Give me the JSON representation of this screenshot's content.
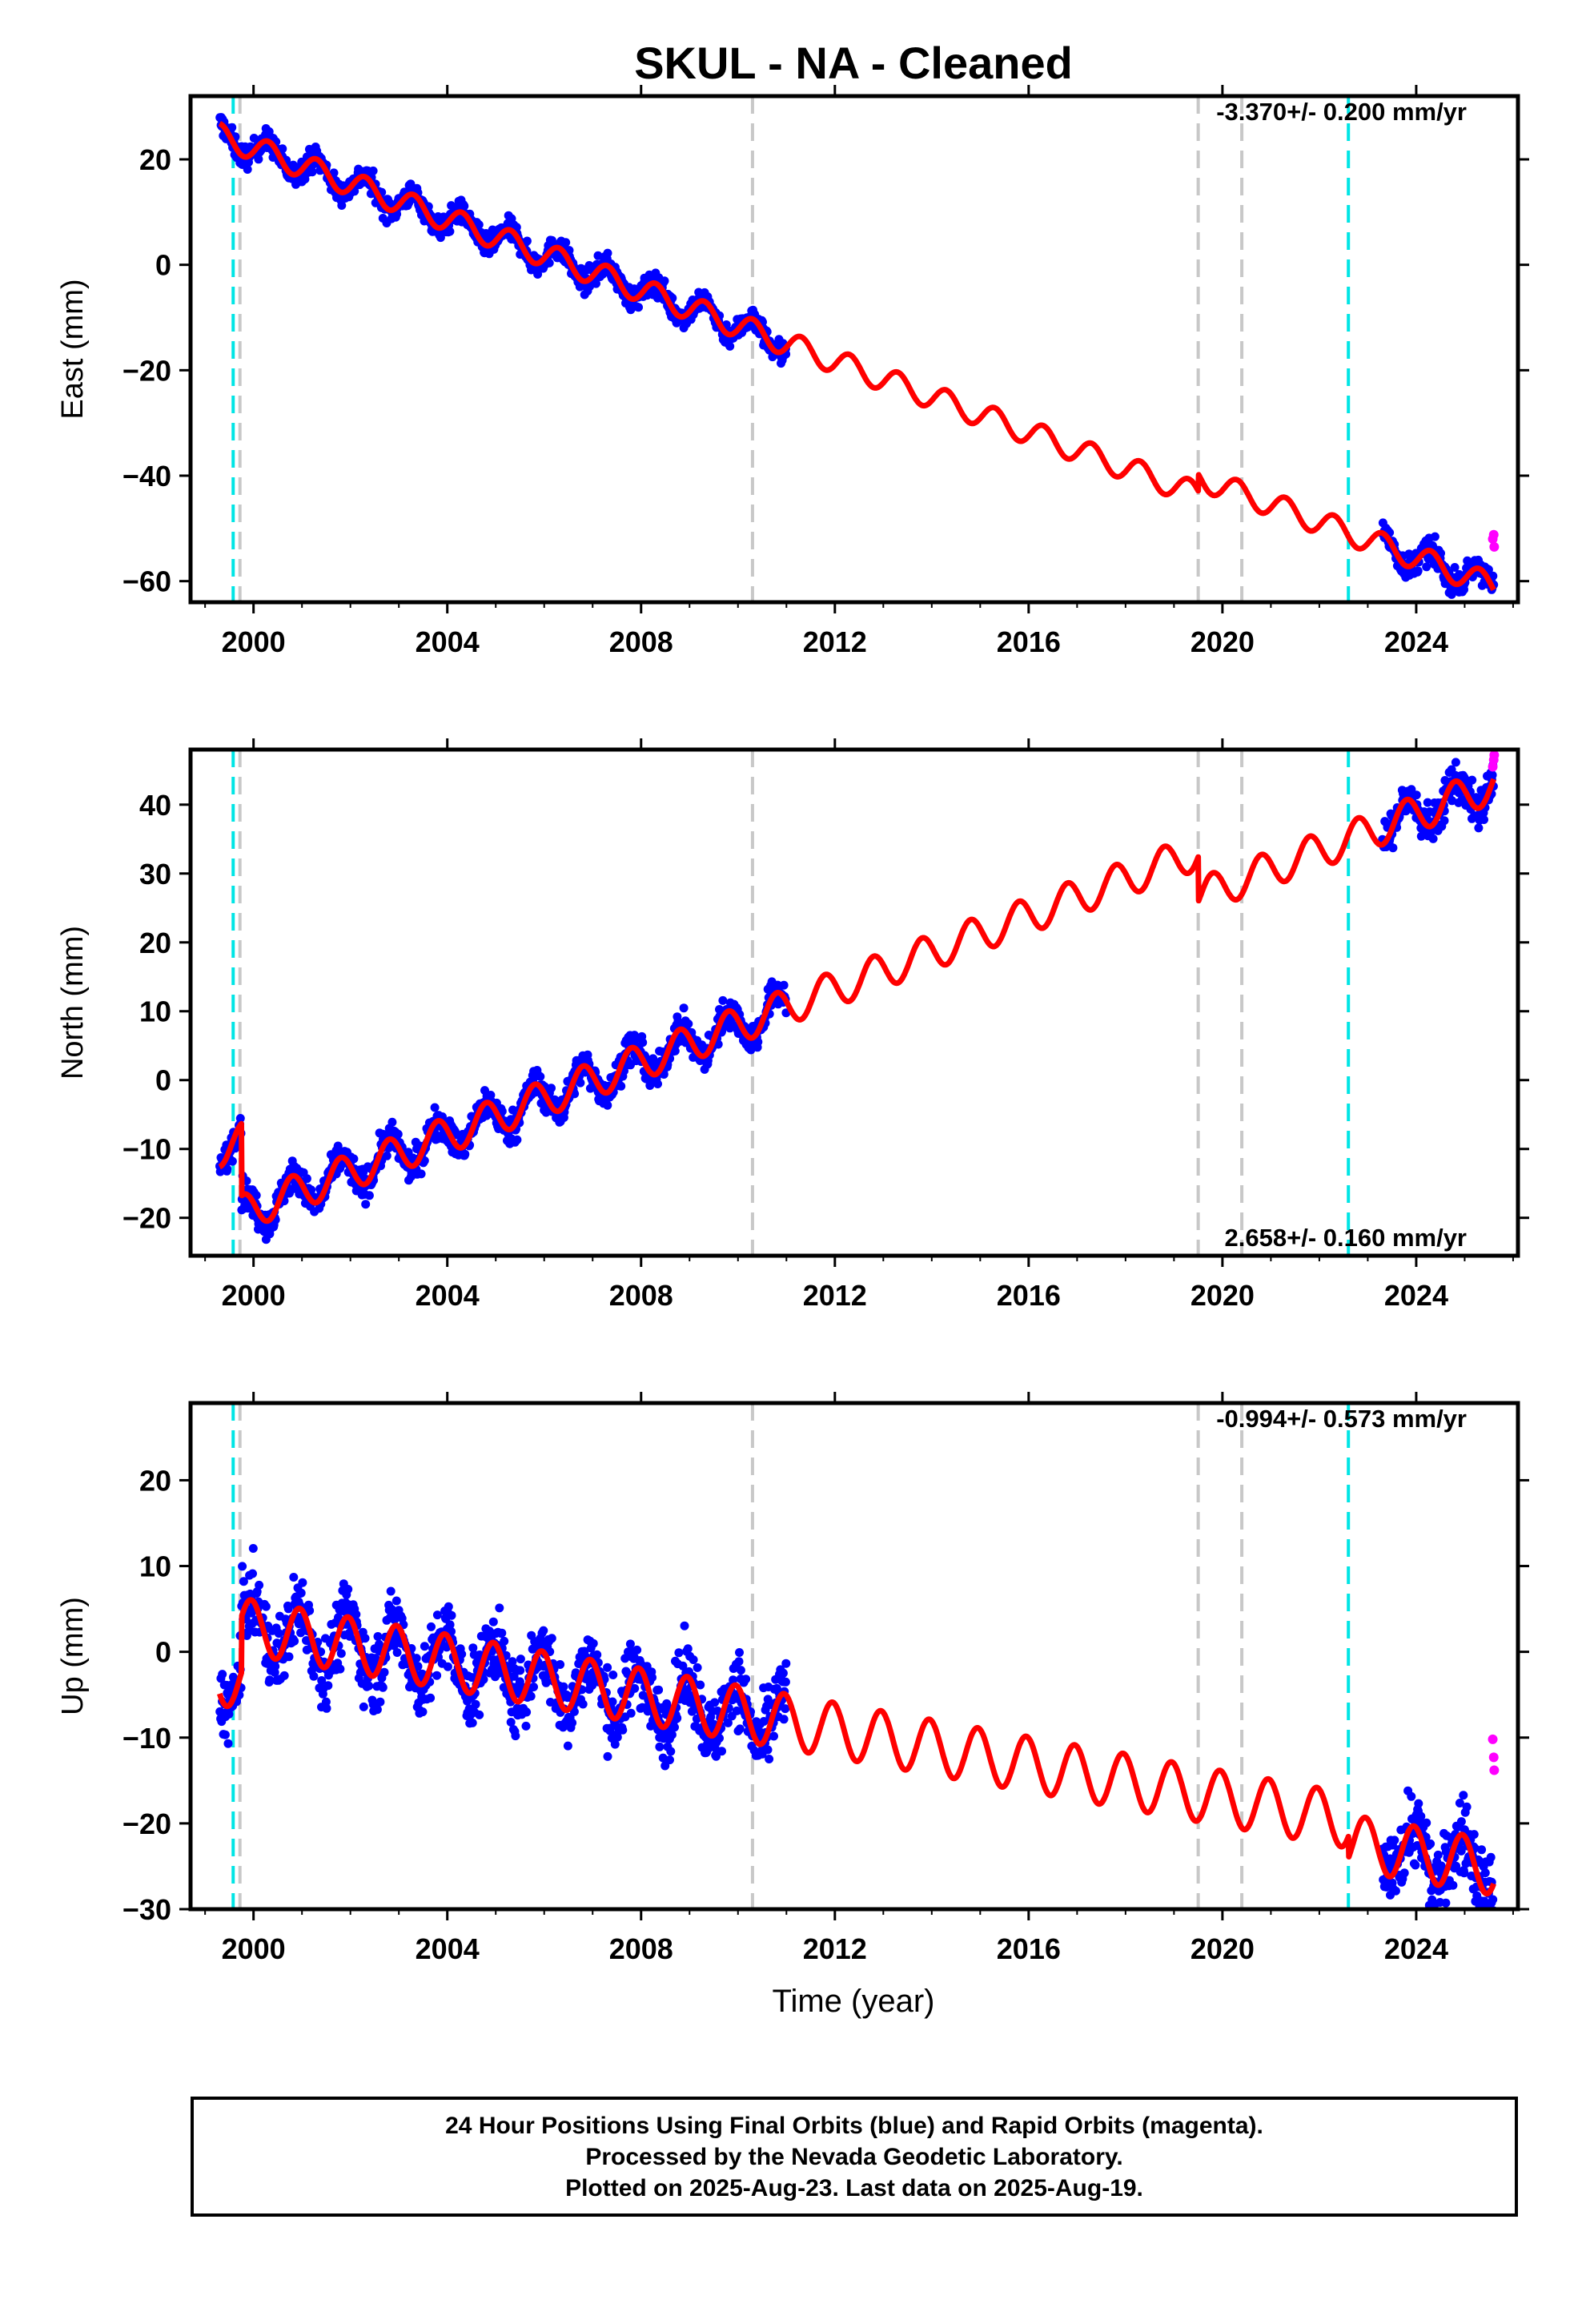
{
  "title": "SKUL  - NA - Cleaned",
  "xlabel": "Time (year)",
  "footer": {
    "line1": "24 Hour Positions Using Final Orbits (blue) and Rapid Orbits (magenta).",
    "line2": "Processed by the Nevada Geodetic Laboratory.",
    "line3": "Plotted on 2025-Aug-23. Last data on 2025-Aug-19."
  },
  "colors": {
    "final": "#0000ff",
    "rapid": "#ff00ff",
    "model": "#ff0000",
    "equipment_change": "#c8c8c8",
    "earthquake": "#00e5e5"
  },
  "chart_data": [
    {
      "type": "scatter",
      "ylabel": "East (mm)",
      "rate": "-3.370+/- 0.200 mm/yr",
      "xlim": [
        1998.7,
        2026.1
      ],
      "ylim": [
        -64,
        32
      ],
      "xticks": [
        2000,
        2004,
        2008,
        2012,
        2016,
        2020,
        2024
      ],
      "yticks": [
        -60,
        -40,
        -20,
        0,
        20
      ],
      "model": {
        "name": "",
        "t0": 1999.3,
        "y0": 24.5,
        "slope": -3.37,
        "amplitude": 2.3,
        "annual_offset": -0.05
      },
      "steps": [
        {
          "x": 2019.5,
          "dy": 3.2
        }
      ],
      "data_segments": [
        {
          "start": 1999.3,
          "end": 2011.0,
          "scatter": 2.2
        },
        {
          "start": 2023.3,
          "end": 2025.6,
          "scatter": 2.3
        }
      ],
      "rapid_points": [
        [
          2025.58,
          -52.0
        ],
        [
          2025.6,
          -51.2
        ],
        [
          2025.61,
          -53.5
        ]
      ],
      "equipment_changes": [
        1999.72,
        2010.3,
        2019.5,
        2020.4
      ],
      "earthquakes": [
        1999.58,
        2022.6
      ]
    },
    {
      "type": "scatter",
      "ylabel": "North (mm)",
      "rate": "2.658+/- 0.160 mm/yr",
      "xlim": [
        1998.7,
        2026.1
      ],
      "ylim": [
        -25.5,
        48
      ],
      "xticks": [
        2000,
        2004,
        2008,
        2012,
        2016,
        2020,
        2024
      ],
      "yticks": [
        -20,
        -10,
        0,
        10,
        20,
        30,
        40
      ],
      "model": {
        "name": "",
        "t0": 1999.3,
        "y0": -10.0,
        "slope": 2.658,
        "amplitude": 2.6,
        "annual_offset": 0.45
      },
      "steps": [
        {
          "x": 1999.75,
          "dy": -10.5
        },
        {
          "x": 2019.5,
          "dy": -6.5
        }
      ],
      "data_segments": [
        {
          "start": 1999.3,
          "end": 2011.0,
          "scatter": 2.3
        },
        {
          "start": 2023.3,
          "end": 2025.6,
          "scatter": 2.8
        }
      ],
      "rapid_points": [
        [
          2025.58,
          45.5
        ],
        [
          2025.6,
          46.5
        ],
        [
          2025.61,
          47.2
        ]
      ],
      "equipment_changes": [
        1999.72,
        2010.3,
        2019.5,
        2020.4
      ],
      "earthquakes": [
        1999.58,
        2022.6
      ]
    },
    {
      "type": "scatter",
      "ylabel": "Up (mm)",
      "rate": "-0.994+/- 0.573 mm/yr",
      "xlim": [
        1998.7,
        2026.1
      ],
      "ylim": [
        -30,
        29
      ],
      "xticks": [
        2000,
        2004,
        2008,
        2012,
        2016,
        2020,
        2024
      ],
      "yticks": [
        -30,
        -20,
        -10,
        0,
        10,
        20
      ],
      "model": {
        "name": "",
        "t0": 1999.3,
        "y0": -3.0,
        "slope": -0.994,
        "amplitude": 3.2,
        "annual_offset": 0.3
      },
      "steps": [
        {
          "x": 1999.75,
          "dy": 6.5
        },
        {
          "x": 2022.6,
          "dy": -2.5
        }
      ],
      "data_segments": [
        {
          "start": 1999.3,
          "end": 2011.0,
          "scatter": 4.2
        },
        {
          "start": 2023.3,
          "end": 2025.6,
          "scatter": 4.6
        }
      ],
      "rapid_points": [
        [
          2025.58,
          -10.2
        ],
        [
          2025.6,
          -12.3
        ],
        [
          2025.61,
          -13.8
        ]
      ],
      "equipment_changes": [
        1999.72,
        2010.3,
        2019.5,
        2020.4
      ],
      "earthquakes": [
        1999.58,
        2022.6
      ]
    }
  ]
}
